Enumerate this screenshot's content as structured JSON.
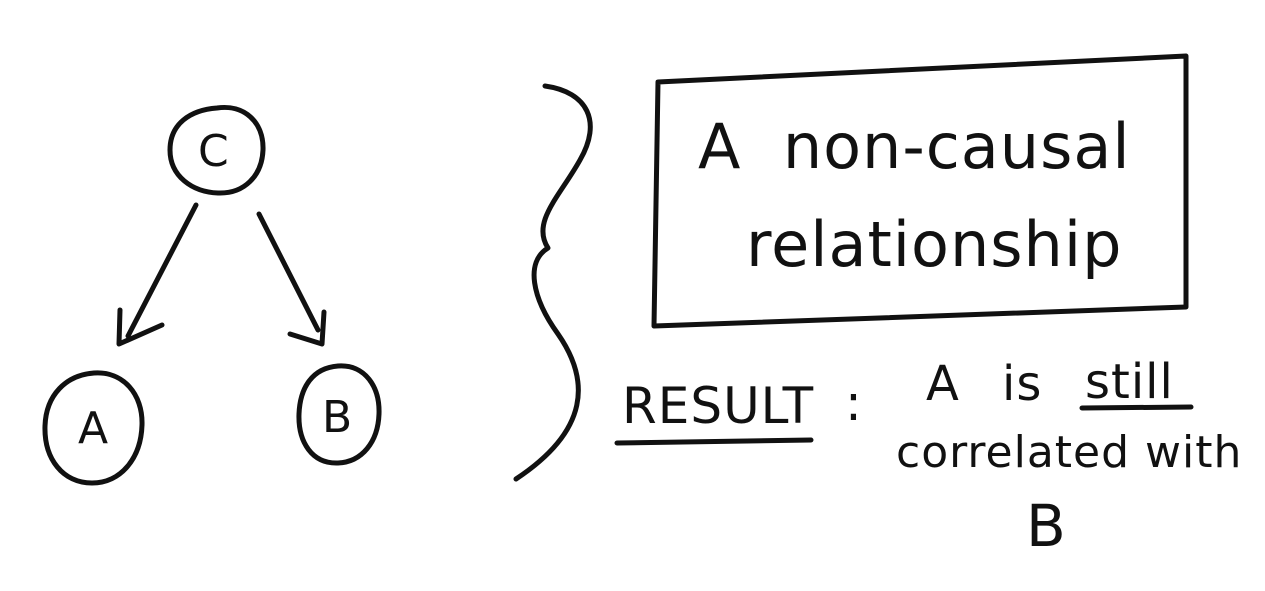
{
  "graph": {
    "nodes": [
      {
        "id": "C",
        "label": "C"
      },
      {
        "id": "A",
        "label": "A"
      },
      {
        "id": "B",
        "label": "B"
      }
    ],
    "edges": [
      {
        "from": "C",
        "to": "A"
      },
      {
        "from": "C",
        "to": "B"
      }
    ]
  },
  "box": {
    "line1": "A  non-causal",
    "line2": "relationship"
  },
  "result": {
    "label": "RESULT",
    "colon": ":",
    "text_a": "A",
    "text_is": "is",
    "text_still": "still",
    "line2": "correlated with",
    "line3": "B"
  },
  "colors": {
    "ink": "#111111",
    "background": "#ffffff"
  }
}
